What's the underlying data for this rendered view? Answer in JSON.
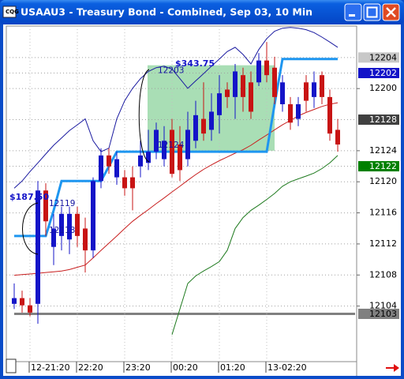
{
  "window": {
    "title": "USAAU3 - Treasury Bond - Combined, Sep 03, 10 Min"
  },
  "chart_data": {
    "type": "candlestick",
    "categories": [
      null,
      null,
      "12-21:20",
      null,
      null,
      null,
      null,
      null,
      "22:20",
      null,
      null,
      null,
      null,
      null,
      "23:20",
      null,
      null,
      null,
      null,
      null,
      "00:20",
      null,
      null,
      null,
      null,
      null,
      "01:20",
      null,
      null,
      null,
      null,
      null,
      "13-02:20",
      null,
      null,
      null,
      null,
      null,
      null,
      null,
      null,
      null
    ],
    "open": [
      121.134,
      121.157,
      121.128,
      121.134,
      121.59,
      121.363,
      121.407,
      121.393,
      121.496,
      121.437,
      121.349,
      121.628,
      121.731,
      121.643,
      121.643,
      121.643,
      121.687,
      121.701,
      121.746,
      121.716,
      121.834,
      121.775,
      121.716,
      121.79,
      121.878,
      121.834,
      121.893,
      121.996,
      121.966,
      122.054,
      122.025,
      122.025,
      122.113,
      122.084,
      121.937,
      121.937,
      121.878,
      122.025,
      121.966,
      122.054,
      121.966,
      121.834
    ],
    "high": [
      121.216,
      121.187,
      121.157,
      121.628,
      121.619,
      121.496,
      121.525,
      121.525,
      121.525,
      121.481,
      121.643,
      121.76,
      121.76,
      121.746,
      121.672,
      121.687,
      121.79,
      121.834,
      121.863,
      121.849,
      121.878,
      121.849,
      121.907,
      121.951,
      122.025,
      121.981,
      122.054,
      122.025,
      122.099,
      122.084,
      122.069,
      122.143,
      122.187,
      122.128,
      122.054,
      121.966,
      121.966,
      122.054,
      122.069,
      122.069,
      121.996,
      121.878
    ],
    "low": [
      121.113,
      121.099,
      121.084,
      121.054,
      121.407,
      121.29,
      121.349,
      121.334,
      121.363,
      121.26,
      121.319,
      121.599,
      121.657,
      121.613,
      121.569,
      121.51,
      121.643,
      121.672,
      121.716,
      121.687,
      121.643,
      121.628,
      121.687,
      121.76,
      121.79,
      121.79,
      121.819,
      121.922,
      121.878,
      121.907,
      121.878,
      122.01,
      122.025,
      121.937,
      121.907,
      121.834,
      121.849,
      121.907,
      121.922,
      121.937,
      121.79,
      121.746
    ],
    "close": [
      121.157,
      121.128,
      121.099,
      121.59,
      121.466,
      121.437,
      121.496,
      121.496,
      121.407,
      121.349,
      121.628,
      121.731,
      121.687,
      121.716,
      121.599,
      121.599,
      121.731,
      121.746,
      121.834,
      121.79,
      121.657,
      121.672,
      121.834,
      121.893,
      121.819,
      121.907,
      121.981,
      121.966,
      122.069,
      121.966,
      121.907,
      122.113,
      122.054,
      121.966,
      122.025,
      121.863,
      121.937,
      121.951,
      122.025,
      121.966,
      121.819,
      121.775
    ],
    "up_color": "#1414c8",
    "down_color": "#c81414",
    "lines": [
      {
        "color": "#1a1aa0",
        "values": [
          121.599,
          121.628,
          121.666,
          121.701,
          121.737,
          121.772,
          121.801,
          121.831,
          121.854,
          121.878,
          121.79,
          121.746,
          121.76,
          121.878,
          121.951,
          122.001,
          122.04,
          122.069,
          122.084,
          122.09,
          122.078,
          122.04,
          122.001,
          122.031,
          122.06,
          122.09,
          122.119,
          122.149,
          122.166,
          122.137,
          122.099,
          122.157,
          122.201,
          122.231,
          122.243,
          122.246,
          122.243,
          122.237,
          122.225,
          122.207,
          122.187,
          122.166
        ]
      },
      {
        "color": "#c81e1e",
        "values": [
          121.249,
          121.252,
          121.254,
          121.257,
          121.26,
          121.263,
          121.266,
          121.272,
          121.281,
          121.29,
          121.319,
          121.349,
          121.378,
          121.407,
          121.437,
          121.466,
          121.49,
          121.513,
          121.537,
          121.56,
          121.584,
          121.607,
          121.631,
          121.654,
          121.675,
          121.693,
          121.71,
          121.725,
          121.74,
          121.754,
          121.772,
          121.793,
          121.813,
          121.834,
          121.854,
          121.872,
          121.89,
          121.904,
          121.916,
          121.928,
          121.937,
          121.943
        ]
      },
      {
        "color": "#1e7a1e",
        "values": [
          null,
          null,
          null,
          null,
          null,
          null,
          null,
          null,
          null,
          null,
          null,
          null,
          null,
          null,
          null,
          null,
          null,
          null,
          null,
          null,
          121.01,
          121.113,
          121.216,
          121.246,
          121.266,
          121.284,
          121.304,
          121.349,
          121.437,
          121.481,
          121.51,
          121.531,
          121.554,
          121.578,
          121.607,
          121.625,
          121.637,
          121.648,
          121.66,
          121.678,
          121.701,
          121.731
        ]
      },
      {
        "color": "#1e96f0",
        "width": 3,
        "values": [
          121.407,
          121.407,
          121.407,
          121.407,
          121.407,
          121.51,
          121.628,
          121.628,
          121.628,
          121.628,
          121.628,
          121.628,
          121.687,
          121.746,
          121.746,
          121.746,
          121.746,
          121.746,
          121.746,
          121.746,
          121.746,
          121.746,
          121.746,
          121.746,
          121.746,
          121.746,
          121.746,
          121.746,
          121.746,
          121.746,
          121.746,
          121.746,
          121.746,
          121.937,
          122.119,
          122.119,
          122.119,
          122.119,
          122.119,
          122.119,
          122.119,
          122.119
        ]
      }
    ],
    "ylim": [
      120.9015,
      122.2515
    ],
    "yticks": [
      {
        "value": 122.0,
        "label": "12200"
      },
      {
        "value": 121.75,
        "label": "12124"
      },
      {
        "value": 121.625,
        "label": "12120"
      },
      {
        "value": 121.5,
        "label": "12116"
      },
      {
        "value": 121.375,
        "label": "12112"
      },
      {
        "value": 121.25,
        "label": "12108"
      },
      {
        "value": 121.125,
        "label": "12104"
      }
    ],
    "price_markers": [
      {
        "value": 122.125,
        "label": "12204",
        "color": "#c8c8c8",
        "text_color": "#000000"
      },
      {
        "value": 122.0625,
        "label": "12202",
        "color": "#1414c8",
        "text_color": "#ffffff"
      },
      {
        "value": 121.875,
        "label": "12128",
        "color": "#404040",
        "text_color": "#ffffff"
      },
      {
        "value": 121.6875,
        "label": "12122",
        "color": "#008000",
        "text_color": "#ffffff"
      },
      {
        "value": 121.09375,
        "label": "12103",
        "color": "#808080",
        "text_color": "#000000"
      }
    ],
    "levels": [
      {
        "label": "12203",
        "value": 122.09375
      },
      {
        "label": "12124",
        "value": 121.75
      },
      {
        "label": "12119",
        "value": 121.59375
      },
      {
        "label": "12113",
        "value": 121.40625
      }
    ],
    "profits": [
      {
        "text": "$343.75"
      },
      {
        "text": "$187.50"
      }
    ],
    "grid": true
  }
}
